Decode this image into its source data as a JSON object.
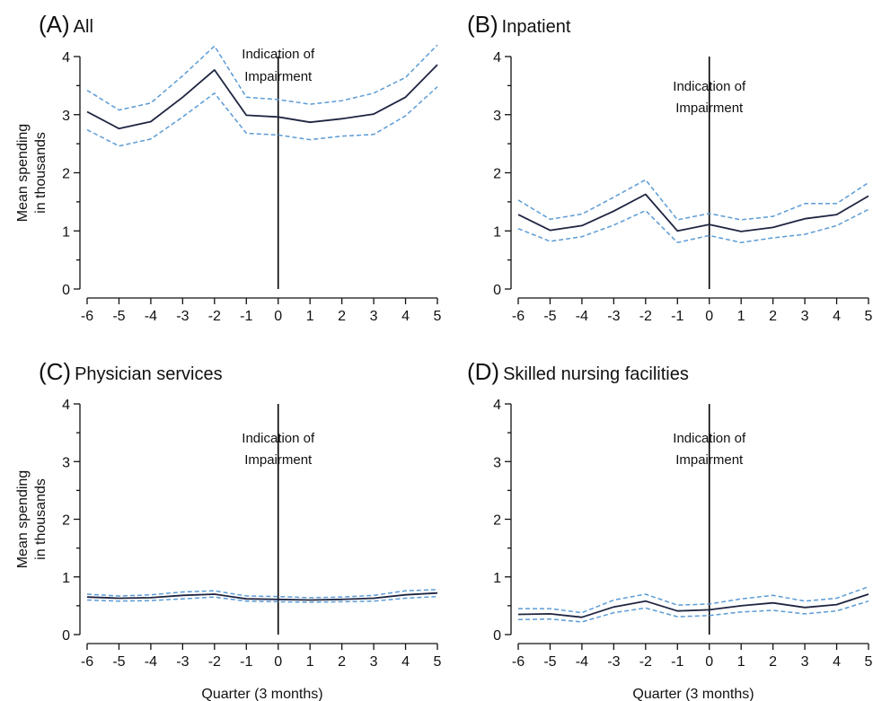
{
  "figure": {
    "xlabel": "Quarter (3 months)",
    "ylabel_line1": "Mean spending",
    "ylabel_line2": "in thousands",
    "annotation_line1": "Indication of",
    "annotation_line2": "Impairment",
    "event_x": 0
  },
  "chart_data": [
    {
      "type": "line",
      "panel_letter": "(A)",
      "title": "All",
      "x": [
        -6,
        -5,
        -4,
        -3,
        -2,
        -1,
        0,
        1,
        2,
        3,
        4,
        5
      ],
      "xlim": [
        -6,
        5
      ],
      "ylim": [
        0,
        4
      ],
      "y_ticks": [
        0,
        1,
        2,
        3,
        4
      ],
      "series": [
        {
          "role": "mean",
          "style": "solid",
          "values": [
            3.05,
            2.76,
            2.88,
            3.3,
            3.77,
            2.99,
            2.96,
            2.87,
            2.93,
            3.01,
            3.3,
            3.86
          ]
        },
        {
          "role": "upper",
          "style": "dashed",
          "values": [
            3.42,
            3.08,
            3.2,
            3.67,
            4.18,
            3.3,
            3.26,
            3.18,
            3.24,
            3.37,
            3.64,
            4.2
          ]
        },
        {
          "role": "lower",
          "style": "dashed",
          "values": [
            2.74,
            2.46,
            2.58,
            2.96,
            3.37,
            2.68,
            2.65,
            2.57,
            2.63,
            2.66,
            2.98,
            3.48
          ]
        }
      ]
    },
    {
      "type": "line",
      "panel_letter": "(B)",
      "title": "Inpatient",
      "x": [
        -6,
        -5,
        -4,
        -3,
        -2,
        -1,
        0,
        1,
        2,
        3,
        4,
        5
      ],
      "xlim": [
        -6,
        5
      ],
      "ylim": [
        0,
        4
      ],
      "y_ticks": [
        0,
        1,
        2,
        3,
        4
      ],
      "series": [
        {
          "role": "mean",
          "style": "solid",
          "values": [
            1.28,
            1.01,
            1.09,
            1.34,
            1.63,
            1.0,
            1.11,
            0.99,
            1.06,
            1.21,
            1.28,
            1.6
          ]
        },
        {
          "role": "upper",
          "style": "dashed",
          "values": [
            1.53,
            1.2,
            1.29,
            1.58,
            1.88,
            1.19,
            1.3,
            1.19,
            1.25,
            1.47,
            1.47,
            1.83
          ]
        },
        {
          "role": "lower",
          "style": "dashed",
          "values": [
            1.04,
            0.82,
            0.9,
            1.1,
            1.35,
            0.8,
            0.92,
            0.8,
            0.88,
            0.94,
            1.09,
            1.37
          ]
        }
      ]
    },
    {
      "type": "line",
      "panel_letter": "(C)",
      "title": "Physician services",
      "x": [
        -6,
        -5,
        -4,
        -3,
        -2,
        -1,
        0,
        1,
        2,
        3,
        4,
        5
      ],
      "xlim": [
        -6,
        5
      ],
      "ylim": [
        0,
        4
      ],
      "y_ticks": [
        0,
        1,
        2,
        3,
        4
      ],
      "series": [
        {
          "role": "mean",
          "style": "solid",
          "values": [
            0.65,
            0.63,
            0.64,
            0.68,
            0.7,
            0.62,
            0.61,
            0.6,
            0.61,
            0.63,
            0.69,
            0.72
          ]
        },
        {
          "role": "upper",
          "style": "dashed",
          "values": [
            0.7,
            0.67,
            0.69,
            0.74,
            0.76,
            0.67,
            0.66,
            0.64,
            0.65,
            0.68,
            0.76,
            0.78
          ]
        },
        {
          "role": "lower",
          "style": "dashed",
          "values": [
            0.6,
            0.58,
            0.59,
            0.62,
            0.65,
            0.58,
            0.57,
            0.56,
            0.57,
            0.58,
            0.63,
            0.66
          ]
        }
      ]
    },
    {
      "type": "line",
      "panel_letter": "(D)",
      "title": "Skilled nursing facilities",
      "x": [
        -6,
        -5,
        -4,
        -3,
        -2,
        -1,
        0,
        1,
        2,
        3,
        4,
        5
      ],
      "xlim": [
        -6,
        5
      ],
      "ylim": [
        0,
        4
      ],
      "y_ticks": [
        0,
        1,
        2,
        3,
        4
      ],
      "series": [
        {
          "role": "mean",
          "style": "solid",
          "values": [
            0.35,
            0.36,
            0.3,
            0.48,
            0.58,
            0.41,
            0.43,
            0.5,
            0.55,
            0.47,
            0.52,
            0.7
          ]
        },
        {
          "role": "upper",
          "style": "dashed",
          "values": [
            0.45,
            0.45,
            0.38,
            0.6,
            0.7,
            0.51,
            0.53,
            0.62,
            0.68,
            0.58,
            0.63,
            0.83
          ]
        },
        {
          "role": "lower",
          "style": "dashed",
          "values": [
            0.26,
            0.27,
            0.22,
            0.38,
            0.46,
            0.31,
            0.33,
            0.39,
            0.42,
            0.36,
            0.41,
            0.58
          ]
        }
      ]
    }
  ],
  "colors": {
    "mean_line": "#1f2541",
    "ci_line": "#5b9bd5",
    "axis": "#111111",
    "event_line": "#000000"
  }
}
